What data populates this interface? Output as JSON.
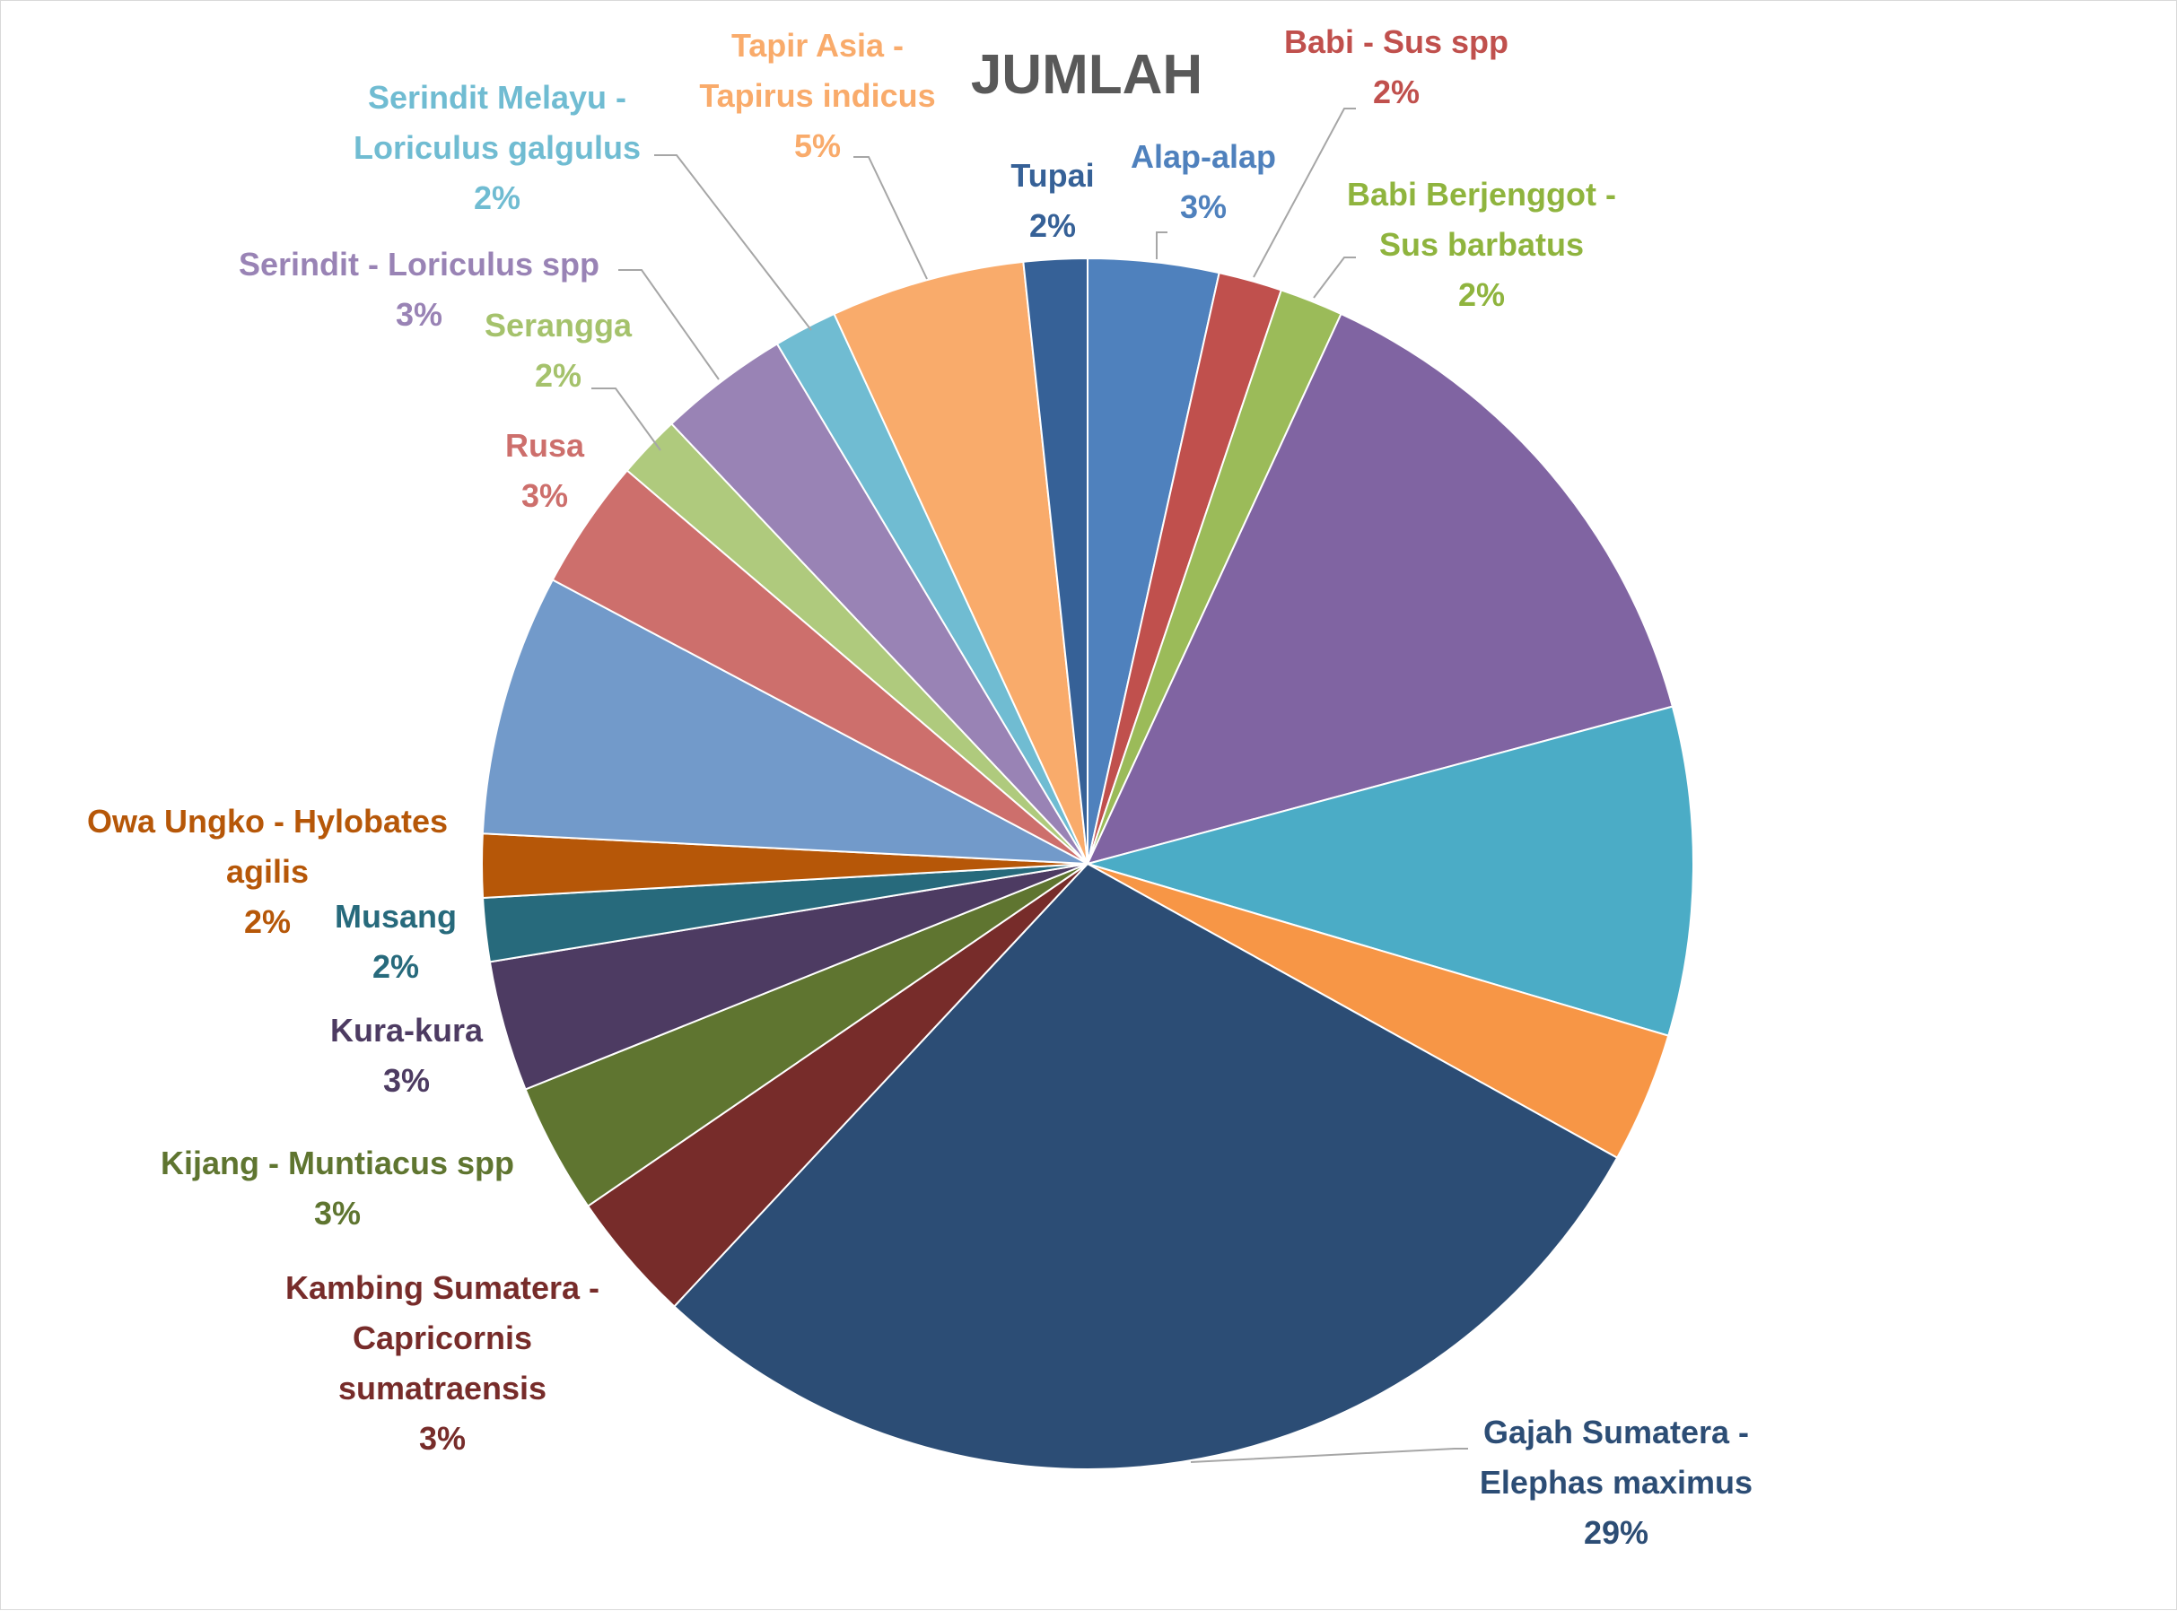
{
  "chart_data": {
    "type": "pie",
    "title": "JUMLAH",
    "start_angle_deg": 0,
    "direction": "clockwise",
    "slices": [
      {
        "label": "Alap-alap",
        "value": 3.5,
        "display": "3%",
        "color": "#4f81bd",
        "show_label": true
      },
      {
        "label": "Babi - Sus spp",
        "value": 1.7,
        "display": "2%",
        "color": "#c0504d",
        "show_label": true
      },
      {
        "label": "Babi Berjenggot - Sus barbatus",
        "value": 1.7,
        "display": "2%",
        "color": "#9bbb59",
        "show_label": true
      },
      {
        "label": "",
        "value": 14.0,
        "display": "",
        "color": "#8064a2",
        "show_label": false
      },
      {
        "label": "",
        "value": 8.8,
        "display": "",
        "color": "#4bacc6",
        "show_label": false
      },
      {
        "label": "",
        "value": 3.5,
        "display": "",
        "color": "#f79646",
        "show_label": false
      },
      {
        "label": "Gajah Sumatera - Elephas maximus",
        "value": 29.0,
        "display": "29%",
        "color": "#2c4d75",
        "show_label": true
      },
      {
        "label": "Kambing Sumatera - Capricornis sumatraensis",
        "value": 3.5,
        "display": "3%",
        "color": "#772c2a",
        "show_label": true
      },
      {
        "label": "Kijang - Muntiacus spp",
        "value": 3.5,
        "display": "3%",
        "color": "#5f7530",
        "show_label": true
      },
      {
        "label": "Kura-kura",
        "value": 3.5,
        "display": "3%",
        "color": "#4d3b62",
        "show_label": true
      },
      {
        "label": "Musang",
        "value": 1.7,
        "display": "2%",
        "color": "#276a7c",
        "show_label": true
      },
      {
        "label": "Owa Ungko - Hylobates agilis",
        "value": 1.7,
        "display": "2%",
        "color": "#b65708",
        "show_label": true
      },
      {
        "label": "",
        "value": 7.0,
        "display": "",
        "color": "#729aca",
        "show_label": false
      },
      {
        "label": "Rusa",
        "value": 3.5,
        "display": "3%",
        "color": "#cd6f6c",
        "show_label": true
      },
      {
        "label": "Serangga",
        "value": 1.7,
        "display": "2%",
        "color": "#afca7d",
        "show_label": true
      },
      {
        "label": "Serindit - Loriculus spp",
        "value": 3.5,
        "display": "3%",
        "color": "#9983b5",
        "show_label": true
      },
      {
        "label": "Serindit Melayu - Loriculus galgulus",
        "value": 1.7,
        "display": "2%",
        "color": "#70bcd2",
        "show_label": true
      },
      {
        "label": "Tapir Asia - Tapirus indicus",
        "value": 5.2,
        "display": "5%",
        "color": "#f9ab6b",
        "show_label": true
      },
      {
        "label": "Tupai",
        "value": 1.7,
        "display": "2%",
        "color": "#366197",
        "show_label": true
      }
    ],
    "label_color_overrides": {
      "Babi Berjenggot - Sus barbatus": "#8fb43e",
      "Serangga": "#a5c26c"
    },
    "leader_color": "#a6a6a6",
    "legend": "none"
  }
}
